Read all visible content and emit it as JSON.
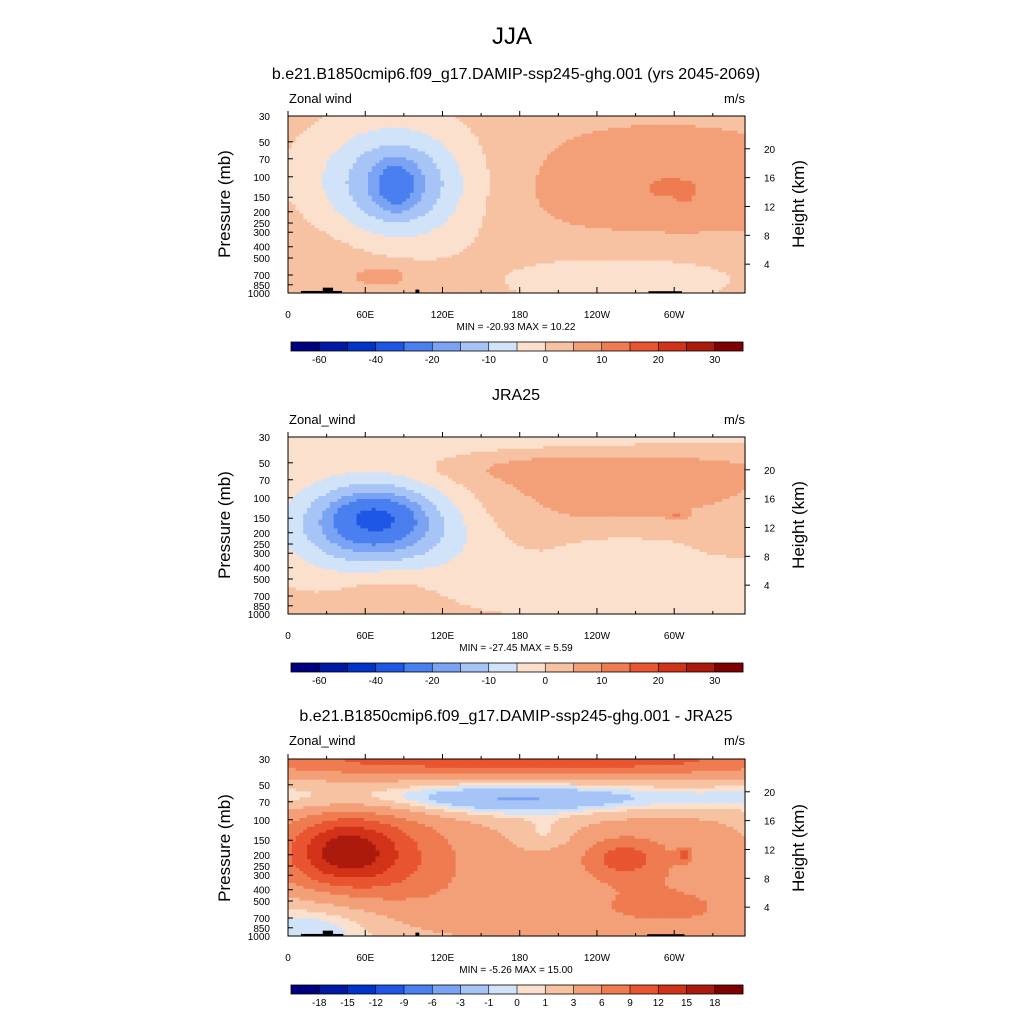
{
  "figure": {
    "title": "JJA",
    "min_label": "MIN",
    "max_label": "MAX"
  },
  "axes": {
    "ylabel": "Pressure (mb)",
    "y2label": "Height (km)",
    "pressure_ticks": [
      30,
      50,
      70,
      100,
      150,
      200,
      250,
      300,
      400,
      500,
      700,
      850,
      1000
    ],
    "height_ticks": [
      4,
      8,
      12,
      16,
      20
    ],
    "longitude_ticks": [
      {
        "lon": 0,
        "label": "0"
      },
      {
        "lon": 60,
        "label": "60E"
      },
      {
        "lon": 120,
        "label": "120E"
      },
      {
        "lon": 180,
        "label": "180"
      },
      {
        "lon": 240,
        "label": "120W"
      },
      {
        "lon": 300,
        "label": "60W"
      }
    ]
  },
  "chart_data": [
    {
      "type": "heatmap",
      "title": "b.e21.B1850cmip6.f09_g17.DAMIP-ssp245-ghg.001 (yrs 2045-2069)",
      "left_label": "Zonal wind",
      "units": "m/s",
      "min": "-20.93",
      "max": "10.22",
      "xlim": [
        0,
        355
      ],
      "ylim": [
        1000,
        30
      ],
      "y_scale": "log",
      "levels": [
        -70,
        -60,
        -50,
        -40,
        -30,
        -20,
        -15,
        -10,
        -5,
        0,
        5,
        10,
        15,
        20,
        25,
        30,
        35
      ],
      "colorbar_labels": [
        {
          "index": 1,
          "label": "-60"
        },
        {
          "index": 3,
          "label": "-40"
        },
        {
          "index": 5,
          "label": "-20"
        },
        {
          "index": 7,
          "label": "-10"
        },
        {
          "index": 9,
          "label": "0"
        },
        {
          "index": 11,
          "label": "10"
        },
        {
          "index": 13,
          "label": "20"
        },
        {
          "index": 15,
          "label": "30"
        }
      ],
      "background": 2.5,
      "features": [
        {
          "lon": 82,
          "p": 122,
          "rx": 72,
          "ry": 0.38,
          "value": -13
        },
        {
          "lon": 85,
          "p": 118,
          "rx": 42,
          "ry": 0.26,
          "value": -9
        },
        {
          "lon": 84,
          "p": 118,
          "rx": 14,
          "ry": 0.13,
          "value": -9
        },
        {
          "lon": 282,
          "p": 138,
          "rx": 150,
          "ry": 0.42,
          "value": 5
        },
        {
          "lon": 305,
          "p": 128,
          "rx": 75,
          "ry": 0.25,
          "value": 3
        },
        {
          "lon": 308,
          "p": 150,
          "rx": 4,
          "ry": 0.02,
          "value": 4
        },
        {
          "lon": 45,
          "p": 480,
          "rx": 75,
          "ry": 0.38,
          "value": 3
        },
        {
          "lon": 75,
          "p": 700,
          "rx": 22,
          "ry": 0.06,
          "value": 5
        },
        {
          "lon": 280,
          "p": 640,
          "rx": 120,
          "ry": 0.25,
          "value": -5
        },
        {
          "lon": 222,
          "p": 820,
          "rx": 50,
          "ry": 0.1,
          "value": -3
        }
      ],
      "topography": [
        {
          "lon0": 10,
          "lon1": 42,
          "p": 960
        },
        {
          "lon0": 27,
          "lon1": 35,
          "p": 900
        },
        {
          "lon0": 99,
          "lon1": 102,
          "p": 935
        },
        {
          "lon0": 280,
          "lon1": 306,
          "p": 965
        }
      ]
    },
    {
      "type": "heatmap",
      "title": "JRA25",
      "left_label": "Zonal_wind",
      "units": "m/s",
      "min": "-27.45",
      "max": "5.59",
      "xlim": [
        0,
        355
      ],
      "ylim": [
        1000,
        30
      ],
      "y_scale": "log",
      "levels": [
        -70,
        -60,
        -50,
        -40,
        -30,
        -20,
        -15,
        -10,
        -5,
        0,
        5,
        10,
        15,
        20,
        25,
        30,
        35
      ],
      "colorbar_labels": [
        {
          "index": 1,
          "label": "-60"
        },
        {
          "index": 3,
          "label": "-40"
        },
        {
          "index": 5,
          "label": "-20"
        },
        {
          "index": 7,
          "label": "-10"
        },
        {
          "index": 9,
          "label": "0"
        },
        {
          "index": 11,
          "label": "10"
        },
        {
          "index": 13,
          "label": "20"
        },
        {
          "index": 15,
          "label": "30"
        }
      ],
      "background": 2.5,
      "features": [
        {
          "lon": 180,
          "p": 30,
          "rx": 250,
          "ry": 0.13,
          "value": -7
        },
        {
          "lon": 70,
          "p": 160,
          "rx": 85,
          "ry": 0.33,
          "value": -13
        },
        {
          "lon": 70,
          "p": 155,
          "rx": 50,
          "ry": 0.2,
          "value": -12
        },
        {
          "lon": 67,
          "p": 150,
          "rx": 25,
          "ry": 0.1,
          "value": -10
        },
        {
          "lon": 60,
          "p": 210,
          "rx": 55,
          "ry": 0.28,
          "value": -4
        },
        {
          "lon": 230,
          "p": 90,
          "rx": 165,
          "ry": 0.38,
          "value": 5
        },
        {
          "lon": 240,
          "p": 55,
          "rx": 110,
          "ry": 0.08,
          "value": 4
        },
        {
          "lon": 302,
          "p": 140,
          "rx": 8,
          "ry": 0.02,
          "value": 6
        },
        {
          "lon": 275,
          "p": 500,
          "rx": 170,
          "ry": 0.33,
          "value": -5
        },
        {
          "lon": 260,
          "p": 260,
          "rx": 45,
          "ry": 0.06,
          "value": -4
        },
        {
          "lon": 75,
          "p": 650,
          "rx": 40,
          "ry": 0.18,
          "value": 5
        }
      ],
      "topography": []
    },
    {
      "type": "heatmap",
      "title": "b.e21.B1850cmip6.f09_g17.DAMIP-ssp245-ghg.001 - JRA25",
      "left_label": "Zonal_wind",
      "units": "m/s",
      "min": "-5.26",
      "max": "15.00",
      "xlim": [
        0,
        355
      ],
      "ylim": [
        1000,
        30
      ],
      "y_scale": "log",
      "levels": [
        -21,
        -18,
        -15,
        -12,
        -9,
        -6,
        -3,
        -1,
        0,
        1,
        3,
        6,
        9,
        12,
        15,
        18,
        21
      ],
      "colorbar_labels": [
        {
          "index": 1,
          "label": "-18"
        },
        {
          "index": 2,
          "label": "-15"
        },
        {
          "index": 3,
          "label": "-12"
        },
        {
          "index": 4,
          "label": "-9"
        },
        {
          "index": 5,
          "label": "-6"
        },
        {
          "index": 6,
          "label": "-3"
        },
        {
          "index": 7,
          "label": "-1"
        },
        {
          "index": 8,
          "label": "0"
        },
        {
          "index": 9,
          "label": "1"
        },
        {
          "index": 10,
          "label": "3"
        },
        {
          "index": 11,
          "label": "6"
        },
        {
          "index": 12,
          "label": "9"
        },
        {
          "index": 13,
          "label": "12"
        },
        {
          "index": 14,
          "label": "15"
        },
        {
          "index": 15,
          "label": "18"
        }
      ],
      "background": 0.5,
      "features": [
        {
          "lon": 180,
          "p": 30,
          "rx": 280,
          "ry": 0.1,
          "value": 10
        },
        {
          "lon": 180,
          "p": 66,
          "rx": 250,
          "ry": 0.09,
          "value": -4
        },
        {
          "lon": 180,
          "p": 70,
          "rx": 90,
          "ry": 0.1,
          "value": -1
        },
        {
          "lon": 50,
          "p": 195,
          "rx": 75,
          "ry": 0.3,
          "value": 9
        },
        {
          "lon": 45,
          "p": 185,
          "rx": 35,
          "ry": 0.17,
          "value": 6
        },
        {
          "lon": 90,
          "p": 350,
          "rx": 110,
          "ry": 0.45,
          "value": 3
        },
        {
          "lon": 290,
          "p": 180,
          "rx": 95,
          "ry": 0.4,
          "value": 4
        },
        {
          "lon": 260,
          "p": 215,
          "rx": 30,
          "ry": 0.11,
          "value": 6
        },
        {
          "lon": 308,
          "p": 200,
          "rx": 6,
          "ry": 0.04,
          "value": 5
        },
        {
          "lon": 200,
          "p": 130,
          "rx": 20,
          "ry": 0.08,
          "value": -2
        },
        {
          "lon": 30,
          "p": 720,
          "rx": 60,
          "ry": 0.2,
          "value": -4
        },
        {
          "lon": 300,
          "p": 650,
          "rx": 140,
          "ry": 0.2,
          "value": 4
        }
      ],
      "topography": [
        {
          "lon0": 10,
          "lon1": 43,
          "p": 960
        },
        {
          "lon0": 27,
          "lon1": 35,
          "p": 900
        },
        {
          "lon0": 99,
          "lon1": 102,
          "p": 935
        },
        {
          "lon0": 279,
          "lon1": 308,
          "p": 965
        }
      ]
    }
  ],
  "colors": {
    "colormap": [
      "#00007f",
      "#0019a4",
      "#0033c8",
      "#1e57e6",
      "#4a7ff0",
      "#7aa3f3",
      "#a6c4f6",
      "#d1e3f9",
      "#fbe0cd",
      "#f7c2a2",
      "#f3a079",
      "#ef7b50",
      "#e85530",
      "#d23218",
      "#ab1a0d",
      "#7f0000"
    ]
  }
}
